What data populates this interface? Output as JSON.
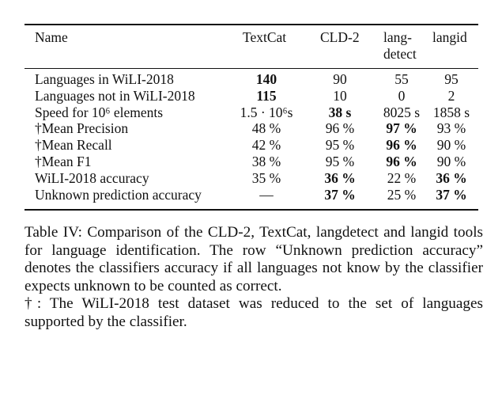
{
  "table": {
    "columns": [
      "Name",
      "TextCat",
      "CLD-2",
      "lang-\ndetect",
      "langid"
    ],
    "rows": [
      {
        "label": "Languages in WiLI-2018",
        "values": [
          "140",
          "90",
          "55",
          "95"
        ],
        "bold": [
          true,
          false,
          false,
          false
        ]
      },
      {
        "label": "Languages not in WiLI-2018",
        "values": [
          "115",
          "10",
          "0",
          "2"
        ],
        "bold": [
          true,
          false,
          false,
          false
        ]
      },
      {
        "label": "Speed for 10⁶ elements",
        "values": [
          "1.5 · 10⁶s",
          "38 s",
          "8025 s",
          "1858 s"
        ],
        "bold": [
          false,
          true,
          false,
          false
        ]
      },
      {
        "label": "†Mean Precision",
        "values": [
          "48 %",
          "96 %",
          "97 %",
          "93 %"
        ],
        "bold": [
          false,
          false,
          true,
          false
        ]
      },
      {
        "label": "†Mean Recall",
        "values": [
          "42 %",
          "95 %",
          "96 %",
          "90 %"
        ],
        "bold": [
          false,
          false,
          true,
          false
        ]
      },
      {
        "label": "†Mean F1",
        "values": [
          "38 %",
          "95 %",
          "96 %",
          "90 %"
        ],
        "bold": [
          false,
          false,
          true,
          false
        ]
      },
      {
        "label": "WiLI-2018 accuracy",
        "values": [
          "35 %",
          "36 %",
          "22 %",
          "36 %"
        ],
        "bold": [
          false,
          true,
          false,
          true
        ]
      },
      {
        "label": "Unknown prediction accuracy",
        "values": [
          "—",
          "37 %",
          "25 %",
          "37 %"
        ],
        "bold": [
          false,
          true,
          false,
          true
        ]
      }
    ]
  },
  "caption": {
    "main": "Table IV: Comparison of the CLD-2, TextCat, langdetect and langid tools for language identification. The row “Unknown prediction accuracy” denotes the classifiers accuracy if all languages not know by the classifier expects unknown to be counted as correct.",
    "note": "†: The WiLI-2018 test dataset was reduced to the set of languages supported by the classifier."
  }
}
